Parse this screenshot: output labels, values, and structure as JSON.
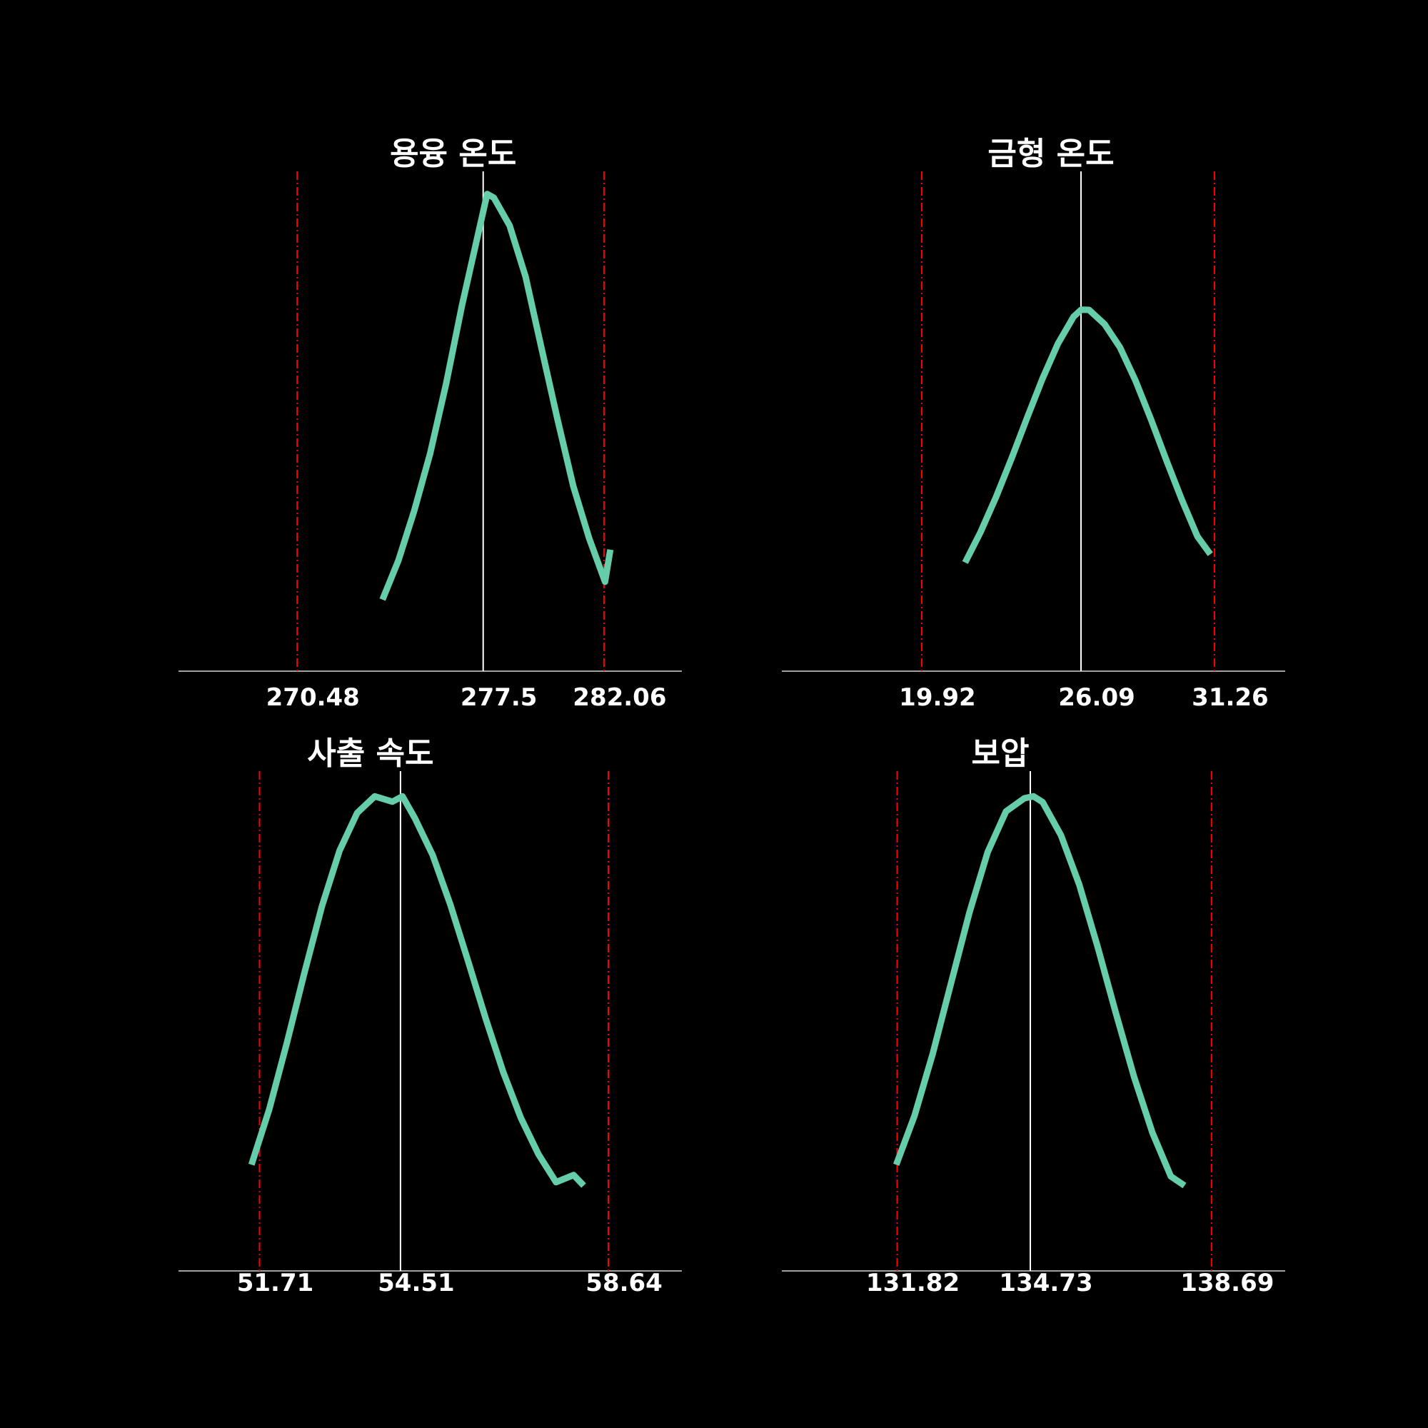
{
  "page": {
    "background": "#000000"
  },
  "style": {
    "curve_color": "#66cdaa",
    "limit_color": "#ff0000",
    "center_color": "#ffffff",
    "axis_color": "#ffffff",
    "text_color": "#ffffff"
  },
  "chart_data": [
    {
      "type": "line",
      "title": "용융 온도",
      "lsl": 270.48,
      "center": 277.5,
      "usl": 282.06,
      "tick_labels": [
        "270.48",
        "277.5",
        "282.06"
      ],
      "xlim": [
        266.0,
        285.0
      ],
      "ylim": [
        0.0,
        0.232
      ],
      "series": [
        {
          "x": [
            273.7,
            274.3,
            274.9,
            275.5,
            276.1,
            276.7,
            277.3,
            277.65,
            277.9,
            278.5,
            279.1,
            279.7,
            280.3,
            280.9,
            281.5,
            282.1,
            282.3
          ],
          "y": [
            0.0332,
            0.0514,
            0.0745,
            0.1011,
            0.1334,
            0.1697,
            0.2024,
            0.2215,
            0.2198,
            0.2068,
            0.1831,
            0.1501,
            0.1172,
            0.0859,
            0.0617,
            0.0415,
            0.0564
          ]
        }
      ]
    },
    {
      "type": "line",
      "title": "금형 온도",
      "lsl": 19.92,
      "center": 26.09,
      "usl": 31.26,
      "tick_labels": [
        "19.92",
        "26.09",
        "31.26"
      ],
      "xlim": [
        14.5,
        34.0
      ],
      "ylim": [
        0.0,
        0.232
      ],
      "series": [
        {
          "x": [
            21.6,
            22.2,
            22.8,
            23.4,
            24.0,
            24.6,
            25.2,
            25.8,
            26.1,
            26.4,
            27.0,
            27.6,
            28.2,
            28.8,
            29.4,
            30.0,
            30.6,
            31.1
          ],
          "y": [
            0.0504,
            0.0646,
            0.0809,
            0.0988,
            0.1176,
            0.1359,
            0.1521,
            0.1645,
            0.1678,
            0.1677,
            0.1611,
            0.1503,
            0.1349,
            0.1169,
            0.0978,
            0.0794,
            0.0625,
            0.0543
          ]
        }
      ]
    },
    {
      "type": "line",
      "title": "사출 속도",
      "lsl": 51.71,
      "center": 54.51,
      "usl": 58.64,
      "tick_labels": [
        "51.71",
        "54.51",
        "58.64"
      ],
      "xlim": [
        50.1,
        60.1
      ],
      "ylim": [
        0.0,
        0.232
      ],
      "series": [
        {
          "x": [
            51.55,
            51.9,
            52.25,
            52.6,
            52.95,
            53.3,
            53.65,
            54.0,
            54.35,
            54.55,
            54.8,
            55.15,
            55.5,
            55.85,
            56.2,
            56.55,
            56.9,
            57.25,
            57.6,
            57.95,
            58.15
          ],
          "y": [
            0.0493,
            0.0748,
            0.1056,
            0.1383,
            0.1693,
            0.1951,
            0.2126,
            0.2203,
            0.2178,
            0.2203,
            0.21,
            0.193,
            0.1701,
            0.144,
            0.1173,
            0.0924,
            0.0711,
            0.0542,
            0.0412,
            0.0445,
            0.0396
          ]
        }
      ]
    },
    {
      "type": "line",
      "title": "보압",
      "lsl": 131.82,
      "center": 134.73,
      "usl": 138.69,
      "tick_labels": [
        "131.82",
        "134.73",
        "138.69"
      ],
      "xlim": [
        129.3,
        140.3
      ],
      "ylim": [
        0.0,
        0.232
      ],
      "series": [
        {
          "x": [
            131.8,
            132.2,
            132.6,
            133.0,
            133.4,
            133.8,
            134.2,
            134.6,
            134.8,
            135.0,
            135.4,
            135.8,
            136.2,
            136.6,
            137.0,
            137.4,
            137.8,
            138.1
          ],
          "y": [
            0.0493,
            0.0721,
            0.101,
            0.1337,
            0.1664,
            0.1945,
            0.2133,
            0.2194,
            0.2203,
            0.2176,
            0.2022,
            0.1793,
            0.1506,
            0.1196,
            0.0899,
            0.0641,
            0.0439,
            0.0396
          ]
        }
      ]
    }
  ]
}
